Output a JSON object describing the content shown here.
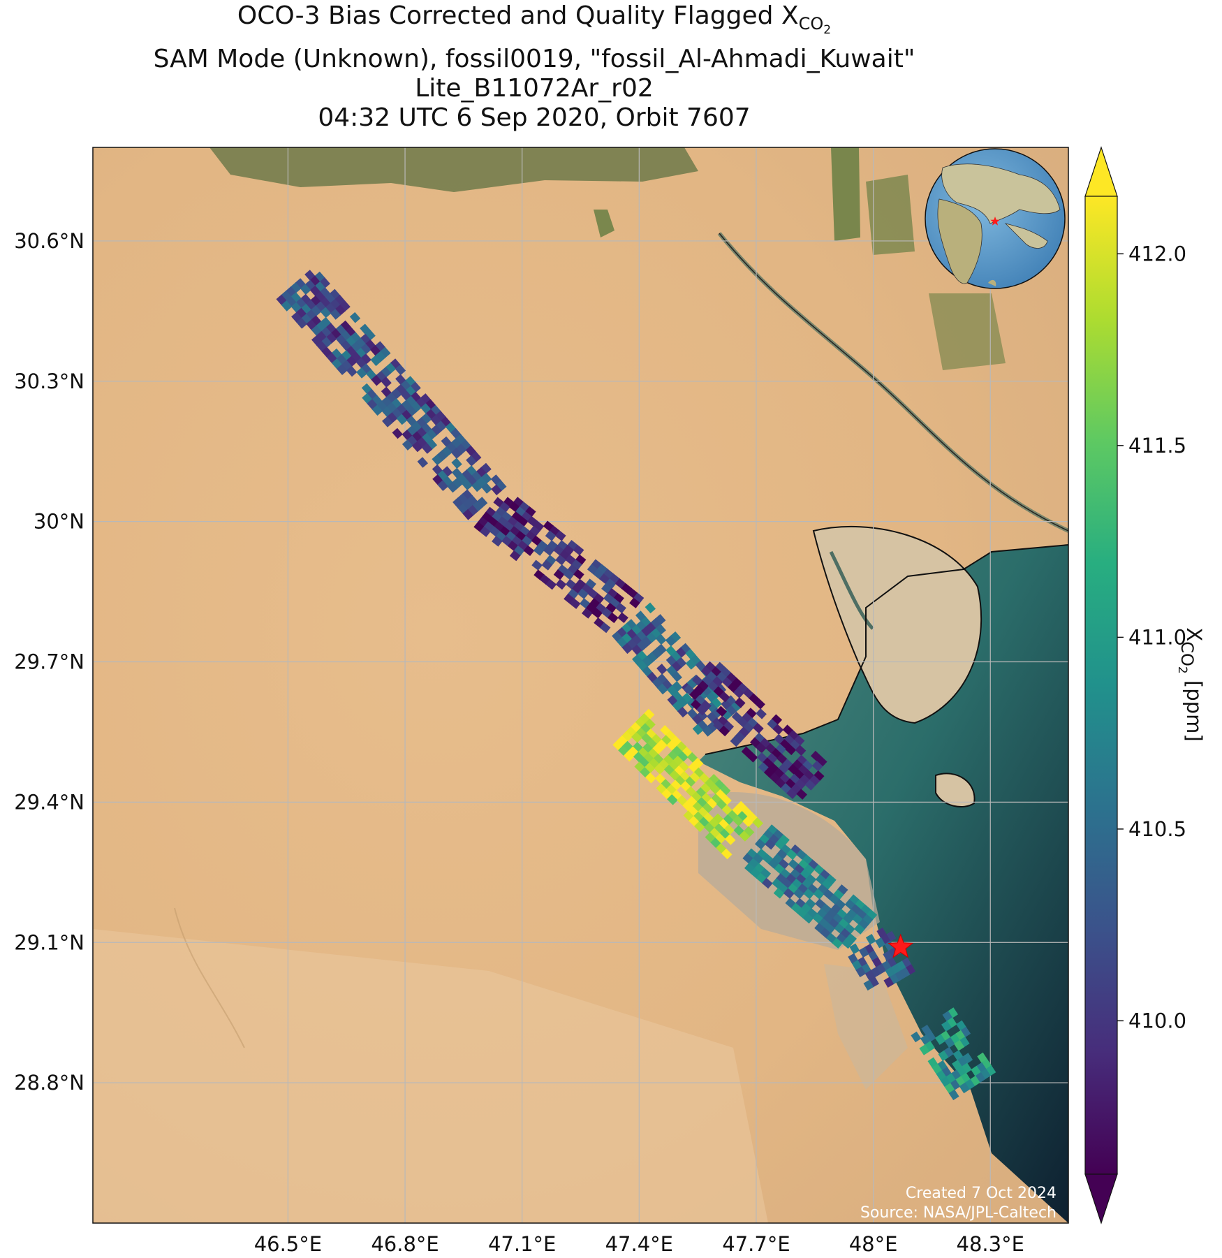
{
  "title": {
    "line1_text": "OCO-3 Bias Corrected and Quality Flagged X",
    "line1_sub": "CO",
    "line1_subsub": "2",
    "line2": "SAM Mode (Unknown), fossil0019, \"fossil_Al-Ahmadi_Kuwait\"",
    "line3": "Lite_B11072Ar_r02",
    "line4": "04:32 UTC 6 Sep 2020, Orbit 7607"
  },
  "map": {
    "lon_range": [
      46.0,
      48.5
    ],
    "lat_range": [
      28.5,
      30.8
    ],
    "lon_ticks": [
      46.5,
      46.8,
      47.1,
      47.4,
      47.7,
      48.0,
      48.3
    ],
    "lon_tick_labels": [
      "46.5°E",
      "46.8°E",
      "47.1°E",
      "47.4°E",
      "47.7°E",
      "48°E",
      "48.3°E"
    ],
    "lat_ticks": [
      30.6,
      30.3,
      30.0,
      29.7,
      29.4,
      29.1,
      28.8
    ],
    "lat_tick_labels": [
      "30.6°N",
      "30.3°N",
      "30°N",
      "29.7°N",
      "29.4°N",
      "29.1°N",
      "28.8°N"
    ],
    "grid": true,
    "target_marker": {
      "lon": 48.07,
      "lat": 29.09,
      "symbol": "star",
      "color": "#ff1a1a"
    },
    "inset_globe": {
      "position": "top-right",
      "marker": "star"
    },
    "credit_line1": "Created 7 Oct 2024",
    "credit_line2": "Source: NASA/JPL-Caltech"
  },
  "colorbar": {
    "label_prefix": "X",
    "label_sub": "CO",
    "label_subsub": "2",
    "label_suffix": " [ppm]",
    "range": [
      409.6,
      412.15
    ],
    "ticks": [
      410.0,
      410.5,
      411.0,
      411.5,
      412.0
    ],
    "tick_labels": [
      "410.0",
      "410.5",
      "411.0",
      "411.5",
      "412.0"
    ],
    "colormap": "viridis",
    "extend": "both"
  },
  "chart_data": {
    "type": "scatter",
    "x_name": "longitude",
    "y_name": "latitude",
    "value_name": "XCO2",
    "swath_segments": [
      {
        "lon_start": 46.52,
        "lat_start": 30.5,
        "lon_end": 47.02,
        "lat_end": 30.02,
        "mean_value": 410.2
      },
      {
        "lon_start": 47.02,
        "lat_start": 30.02,
        "lon_end": 47.38,
        "lat_end": 29.78,
        "mean_value": 409.9
      },
      {
        "lon_start": 47.38,
        "lat_start": 29.78,
        "lon_end": 47.62,
        "lat_end": 29.55,
        "mean_value": 410.4
      },
      {
        "lon_start": 47.38,
        "lat_start": 29.55,
        "lon_end": 47.68,
        "lat_end": 29.3,
        "mean_value": 411.9
      },
      {
        "lon_start": 47.55,
        "lat_start": 29.66,
        "lon_end": 47.86,
        "lat_end": 29.42,
        "mean_value": 409.8
      },
      {
        "lon_start": 47.7,
        "lat_start": 29.3,
        "lon_end": 47.98,
        "lat_end": 29.1,
        "mean_value": 410.6
      },
      {
        "lon_start": 47.98,
        "lat_start": 29.1,
        "lon_end": 48.05,
        "lat_end": 29.0,
        "mean_value": 410.3
      },
      {
        "lon_start": 48.15,
        "lat_start": 28.92,
        "lon_end": 48.26,
        "lat_end": 28.78,
        "mean_value": 410.9
      }
    ]
  }
}
